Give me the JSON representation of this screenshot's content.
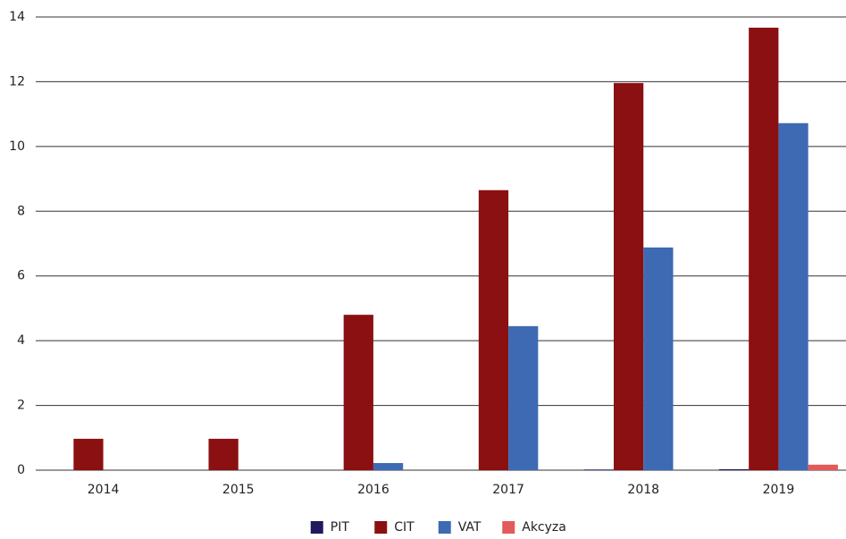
{
  "chart_data": {
    "type": "bar",
    "categories": [
      "2014",
      "2015",
      "2016",
      "2017",
      "2018",
      "2019"
    ],
    "series": [
      {
        "name": "PIT",
        "color": "#1f1a5e",
        "values": [
          0,
          0,
          0,
          0,
          0.02,
          0.03
        ]
      },
      {
        "name": "CIT",
        "color": "#8b1011",
        "values": [
          0.97,
          0.97,
          4.8,
          8.65,
          11.96,
          13.67
        ]
      },
      {
        "name": "VAT",
        "color": "#3d6ab3",
        "values": [
          0,
          0,
          0.22,
          4.45,
          6.88,
          10.72
        ]
      },
      {
        "name": "Akcyza",
        "color": "#e35a5a",
        "values": [
          0,
          0,
          0,
          0,
          0,
          0.17
        ]
      }
    ],
    "ylim": [
      0,
      14
    ],
    "yticks": [
      0,
      2,
      4,
      6,
      8,
      10,
      12,
      14
    ],
    "grid": true,
    "legend": "bottom"
  }
}
